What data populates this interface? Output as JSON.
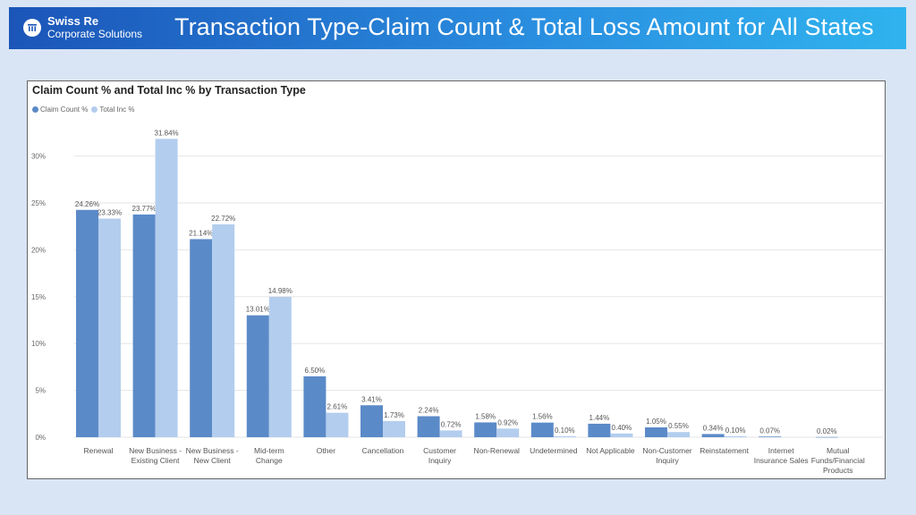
{
  "header": {
    "logo_line1": "Swiss Re",
    "logo_line2": "Corporate Solutions",
    "title": "Transaction Type-Claim Count & Total Loss Amount for All States"
  },
  "chart_data": {
    "type": "bar",
    "title": "Claim Count % and Total Inc % by Transaction Type",
    "xlabel": "",
    "ylabel": "",
    "ylim": [
      0,
      35
    ],
    "yticks": [
      "0%",
      "5%",
      "10%",
      "15%",
      "20%",
      "25%",
      "30%"
    ],
    "grid": true,
    "legend_position": "top-left",
    "categories": [
      [
        "Renewal"
      ],
      [
        "New Business -",
        "Existing Client"
      ],
      [
        "New Business -",
        "New Client"
      ],
      [
        "Mid-term",
        "Change"
      ],
      [
        "Other"
      ],
      [
        "Cancellation"
      ],
      [
        "Customer",
        "Inquiry"
      ],
      [
        "Non-Renewal"
      ],
      [
        "Undetermined"
      ],
      [
        "Not Applicable"
      ],
      [
        "Non-Customer",
        "Inquiry"
      ],
      [
        "Reinstatement"
      ],
      [
        "Internet",
        "Insurance Sales"
      ],
      [
        "Mutual",
        "Funds/Financial",
        "Products"
      ]
    ],
    "series": [
      {
        "name": "Claim Count %",
        "color": "#5b8ac8",
        "values": [
          24.26,
          23.77,
          21.14,
          13.01,
          6.5,
          3.41,
          2.24,
          1.58,
          1.56,
          1.44,
          1.05,
          0.34,
          0.07,
          0.02
        ],
        "labels": [
          "24.26%",
          "23.77%",
          "21.14%",
          "13.01%",
          "6.50%",
          "3.41%",
          "2.24%",
          "1.58%",
          "1.56%",
          "1.44%",
          "1.05%",
          "0.34%",
          "0.07%",
          "0.02%"
        ]
      },
      {
        "name": "Total Inc %",
        "color": "#b3cdee",
        "values": [
          23.33,
          31.84,
          22.72,
          14.98,
          2.61,
          1.73,
          0.72,
          0.92,
          0.1,
          0.4,
          0.55,
          0.1,
          null,
          null
        ],
        "labels": [
          "23.33%",
          "31.84%",
          "22.72%",
          "14.98%",
          "2.61%",
          "1.73%",
          "0.72%",
          "0.92%",
          "0.10%",
          "0.40%",
          "0.55%",
          "0.10%",
          null,
          null
        ]
      }
    ]
  }
}
